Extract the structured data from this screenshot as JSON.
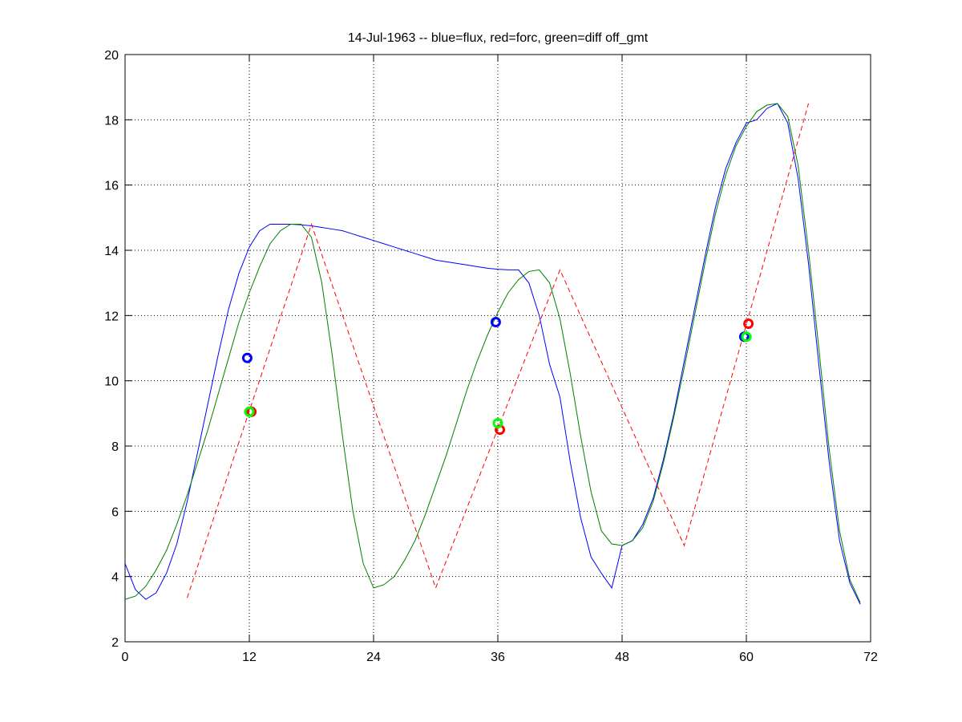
{
  "chart_data": {
    "type": "line",
    "title": "14-Jul-1963 -- blue=flux, red=forc, green=diff off_gmt",
    "xlim": [
      0,
      72
    ],
    "xticks": [
      0,
      12,
      24,
      36,
      48,
      60,
      72
    ],
    "ylim": [
      2,
      20
    ],
    "yticks": [
      2,
      4,
      6,
      8,
      10,
      12,
      14,
      16,
      18,
      20
    ],
    "grid": true,
    "series": [
      {
        "color": "#0000ff",
        "linestyle": "solid",
        "x": [
          0,
          1,
          2,
          3,
          4,
          5,
          6,
          7,
          8,
          9,
          10,
          11,
          12,
          13,
          14,
          15,
          16,
          17,
          18,
          19,
          20,
          21,
          22,
          23,
          24,
          25,
          26,
          27,
          28,
          29,
          30,
          31,
          32,
          33,
          34,
          35,
          36,
          37,
          38,
          39,
          40,
          41,
          42,
          43,
          44,
          45,
          46,
          47,
          48,
          49,
          50,
          51,
          52,
          53,
          54,
          55,
          56,
          57,
          58,
          59,
          60,
          61,
          62,
          63,
          64,
          65,
          66,
          67,
          68,
          69,
          70,
          71
        ],
        "values": [
          4.4,
          3.6,
          3.3,
          3.5,
          4.1,
          5.0,
          6.3,
          7.8,
          9.3,
          10.8,
          12.2,
          13.3,
          14.1,
          14.6,
          14.8,
          14.8,
          14.8,
          14.78,
          14.75,
          14.7,
          14.65,
          14.6,
          14.5,
          14.4,
          14.3,
          14.2,
          14.1,
          14.0,
          13.9,
          13.8,
          13.7,
          13.65,
          13.6,
          13.55,
          13.5,
          13.45,
          13.42,
          13.4,
          13.4,
          13.0,
          12.0,
          10.5,
          9.5,
          7.5,
          5.8,
          4.6,
          4.1,
          3.65,
          4.95,
          5.1,
          5.6,
          6.4,
          7.6,
          9.0,
          10.6,
          12.2,
          13.8,
          15.3,
          16.5,
          17.3,
          17.9,
          18.0,
          18.35,
          18.5,
          17.9,
          16.2,
          13.6,
          10.5,
          7.5,
          5.1,
          3.8,
          3.15
        ]
      },
      {
        "color": "#007f00",
        "linestyle": "solid",
        "x": [
          0,
          1,
          2,
          3,
          4,
          5,
          6,
          7,
          8,
          9,
          10,
          11,
          12,
          13,
          14,
          15,
          16,
          17,
          18,
          19,
          20,
          21,
          22,
          23,
          24,
          25,
          26,
          27,
          28,
          29,
          30,
          31,
          32,
          33,
          34,
          35,
          36,
          37,
          38,
          39,
          40,
          41,
          42,
          43,
          44,
          45,
          46,
          47,
          48,
          49,
          50,
          51,
          52,
          53,
          54,
          55,
          56,
          57,
          58,
          59,
          60,
          61,
          62,
          63,
          64,
          65,
          66,
          67,
          68,
          69,
          70,
          71
        ],
        "values": [
          3.3,
          3.4,
          3.7,
          4.2,
          4.8,
          5.6,
          6.5,
          7.5,
          8.5,
          9.6,
          10.7,
          11.8,
          12.7,
          13.5,
          14.2,
          14.6,
          14.8,
          14.8,
          14.4,
          13.0,
          10.8,
          8.3,
          6.0,
          4.4,
          3.65,
          3.75,
          4.0,
          4.5,
          5.1,
          5.9,
          6.8,
          7.7,
          8.7,
          9.7,
          10.6,
          11.4,
          12.1,
          12.7,
          13.1,
          13.35,
          13.4,
          13.0,
          11.9,
          10.2,
          8.3,
          6.6,
          5.4,
          5.0,
          4.95,
          5.1,
          5.5,
          6.3,
          7.5,
          8.9,
          10.4,
          12.0,
          13.6,
          15.1,
          16.3,
          17.2,
          17.8,
          18.25,
          18.45,
          18.5,
          18.1,
          16.6,
          14.0,
          11.0,
          7.9,
          5.4,
          3.9,
          3.2
        ]
      },
      {
        "color": "#ff0000",
        "linestyle": "dashed",
        "x": [
          6,
          18,
          30,
          42,
          54,
          66
        ],
        "values": [
          3.35,
          14.8,
          3.65,
          13.4,
          4.95,
          18.5
        ]
      },
      {
        "color": "#0000ff",
        "marker": "circle",
        "x": [
          11.8,
          35.8,
          59.8
        ],
        "values": [
          10.7,
          11.8,
          11.35
        ]
      },
      {
        "color": "#ff0000",
        "marker": "circle",
        "x": [
          12.2,
          36.2,
          60.2
        ],
        "values": [
          9.05,
          8.5,
          11.75
        ]
      },
      {
        "color": "#00ff00",
        "marker": "circle",
        "x": [
          12.0,
          36.0,
          60.0
        ],
        "values": [
          9.05,
          8.7,
          11.35
        ]
      }
    ]
  }
}
